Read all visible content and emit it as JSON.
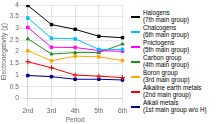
{
  "chart_data": {
    "type": "line",
    "categories": [
      "2nd",
      "3rd",
      "4th",
      "5th",
      "6th"
    ],
    "series": [
      {
        "name": "Halogens\n(7th main group)",
        "color": "#000000",
        "marker": "square",
        "values": [
          3.98,
          3.16,
          2.96,
          2.66,
          2.6
        ]
      },
      {
        "name": "Chalcogens\n(6th main group)",
        "color": "#00bfff",
        "marker": "square",
        "values": [
          3.44,
          2.58,
          2.55,
          2.1,
          2.1
        ]
      },
      {
        "name": "Pnictogens\n(5th main group)",
        "color": "#ff00ff",
        "marker": "square",
        "values": [
          3.04,
          2.19,
          2.18,
          2.05,
          2.02
        ]
      },
      {
        "name": "Carbon group\n(4th main group)",
        "color": "#228B22",
        "marker": "triangle",
        "values": [
          2.55,
          1.9,
          1.96,
          1.96,
          2.33
        ]
      },
      {
        "name": "Boron group\n(3rd main group)",
        "color": "#ffa500",
        "marker": "square",
        "values": [
          2.04,
          1.61,
          1.81,
          1.78,
          1.62
        ]
      },
      {
        "name": "Alkaline earth metals\n(2nd main group)",
        "color": "#ff0000",
        "marker": "plus",
        "values": [
          1.57,
          1.31,
          1.0,
          0.95,
          0.89
        ]
      },
      {
        "name": "Alkali metals\n(1st main group w/o H)",
        "color": "#00008B",
        "marker": "square",
        "values": [
          0.98,
          0.93,
          0.82,
          0.82,
          0.79
        ]
      }
    ],
    "xlabel": "Period",
    "ylabel": "Electronegativity (χ)",
    "ylim": [
      0,
      4.0
    ],
    "yticks": [
      0,
      0.5,
      1.0,
      1.5,
      2.0,
      2.5,
      3.0,
      3.5,
      4.0
    ],
    "grid": true,
    "legend": "right"
  }
}
